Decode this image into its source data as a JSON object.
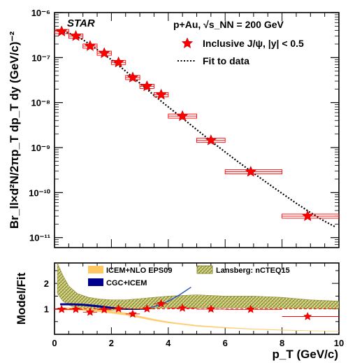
{
  "chart_data": [
    {
      "type": "scatter",
      "panel": "top",
      "experiment": "STAR",
      "system": "p+Au, √s_NN = 200 GeV",
      "ylabel": "Br_ll×d²N/2πp_T dp_T dy (GeV/c)⁻²",
      "xlim": [
        0,
        10
      ],
      "ylim": [
        6e-12,
        1e-06
      ],
      "yscale": "log",
      "y_ticks": [
        "10⁻⁶",
        "10⁻⁷",
        "10⁻⁸",
        "10⁻⁹",
        "10⁻¹⁰",
        "10⁻¹¹"
      ],
      "legend": {
        "placement": "top-right",
        "entries": [
          "Inclusive J/ψ, |y| < 0.5",
          "Fit to data"
        ]
      },
      "series": [
        {
          "name": "Inclusive J/ψ, |y| < 0.5",
          "marker": "star",
          "color": "#ff0000",
          "points": [
            {
              "x": 0.25,
              "y": 3.8e-07,
              "xlo": 0.0,
              "xhi": 0.5
            },
            {
              "x": 0.75,
              "y": 3e-07,
              "xlo": 0.5,
              "xhi": 1.0
            },
            {
              "x": 1.25,
              "y": 1.8e-07,
              "xlo": 1.0,
              "xhi": 1.5
            },
            {
              "x": 1.75,
              "y": 1.25e-07,
              "xlo": 1.5,
              "xhi": 2.0
            },
            {
              "x": 2.25,
              "y": 7.8e-08,
              "xlo": 2.0,
              "xhi": 2.5
            },
            {
              "x": 2.75,
              "y": 3.6e-08,
              "xlo": 2.5,
              "xhi": 3.0
            },
            {
              "x": 3.25,
              "y": 2.3e-08,
              "xlo": 3.0,
              "xhi": 3.5
            },
            {
              "x": 3.75,
              "y": 1.5e-08,
              "xlo": 3.5,
              "xhi": 4.0
            },
            {
              "x": 4.5,
              "y": 5e-09,
              "xlo": 4.0,
              "xhi": 5.0
            },
            {
              "x": 5.5,
              "y": 1.45e-09,
              "xlo": 5.0,
              "xhi": 6.0
            },
            {
              "x": 6.9,
              "y": 2.9e-10,
              "xlo": 6.0,
              "xhi": 8.0
            },
            {
              "x": 8.9,
              "y": 3e-11,
              "xlo": 8.0,
              "xhi": 10.0
            }
          ]
        },
        {
          "name": "Fit to data",
          "style": "dotted",
          "color": "#000000",
          "points": [
            {
              "x": 0.1,
              "y": 3.9e-07
            },
            {
              "x": 0.5,
              "y": 3.5e-07
            },
            {
              "x": 1.0,
              "y": 2.5e-07
            },
            {
              "x": 1.5,
              "y": 1.5e-07
            },
            {
              "x": 2.0,
              "y": 9e-08
            },
            {
              "x": 2.5,
              "y": 5e-08
            },
            {
              "x": 3.0,
              "y": 2.7e-08
            },
            {
              "x": 3.5,
              "y": 1.45e-08
            },
            {
              "x": 4.0,
              "y": 8e-09
            },
            {
              "x": 4.5,
              "y": 4.5e-09
            },
            {
              "x": 5.0,
              "y": 2.5e-09
            },
            {
              "x": 5.5,
              "y": 1.4e-09
            },
            {
              "x": 6.0,
              "y": 8e-10
            },
            {
              "x": 6.5,
              "y": 4.6e-10
            },
            {
              "x": 7.0,
              "y": 2.7e-10
            },
            {
              "x": 7.5,
              "y": 1.6e-10
            },
            {
              "x": 8.0,
              "y": 9.6e-11
            },
            {
              "x": 8.5,
              "y": 5.8e-11
            },
            {
              "x": 9.0,
              "y": 3.6e-11
            },
            {
              "x": 9.5,
              "y": 2.3e-11
            },
            {
              "x": 9.9,
              "y": 1.7e-11
            }
          ]
        }
      ]
    },
    {
      "type": "line",
      "panel": "bottom",
      "xlabel": "p_T (GeV/c)",
      "ylabel": "Model/Fit",
      "xlim": [
        0,
        10
      ],
      "ylim": [
        0,
        2.8
      ],
      "x_ticks": [
        "0",
        "2",
        "4",
        "6",
        "8",
        "10"
      ],
      "y_ticks": [
        "1",
        "2"
      ],
      "legend": {
        "placement": "top",
        "entries": [
          "ICEM+NLO EPS09",
          "CGC+ICEM",
          "Lansberg: nCTEQ15"
        ]
      },
      "series": [
        {
          "name": "Lansberg: nCTEQ15",
          "style": "hatched band",
          "color": "#a0a040",
          "x": [
            0.1,
            0.3,
            0.5,
            0.8,
            1.2,
            1.6,
            2.0,
            2.5,
            3.0,
            3.5,
            4.0,
            5.0,
            6.0,
            7.0,
            8.0,
            9.0,
            10.0
          ],
          "upper": [
            2.8,
            2.3,
            1.9,
            1.6,
            1.45,
            1.38,
            1.35,
            1.35,
            1.4,
            1.45,
            1.5,
            1.55,
            1.5,
            1.5,
            1.45,
            1.35,
            1.3
          ],
          "lower": [
            1.6,
            1.3,
            1.15,
            1.02,
            0.95,
            0.95,
            0.95,
            0.97,
            1.0,
            1.02,
            1.04,
            1.05,
            1.05,
            1.04,
            1.03,
            1.02,
            1.0
          ]
        },
        {
          "name": "ICEM+NLO EPS09",
          "style": "band",
          "color": "#ffc860",
          "x": [
            0.3,
            1.0,
            1.5,
            2.0,
            2.5,
            3.0,
            3.5,
            4.0,
            5.0,
            6.0,
            7.0,
            8.0,
            9.0,
            10.0
          ],
          "upper": [
            1.05,
            1.05,
            1.0,
            0.92,
            0.85,
            0.72,
            0.6,
            0.5,
            0.36,
            0.28,
            0.22,
            0.18,
            0.15,
            0.13
          ],
          "lower": [
            0.95,
            0.93,
            0.88,
            0.82,
            0.75,
            0.64,
            0.53,
            0.44,
            0.31,
            0.24,
            0.19,
            0.15,
            0.13,
            0.11
          ]
        },
        {
          "name": "CGC+ICEM",
          "style": "band",
          "color": "#000090",
          "x": [
            0.2,
            0.6,
            1.0,
            1.5,
            2.0,
            2.5,
            3.0,
            3.3
          ],
          "upper": [
            1.22,
            1.22,
            1.2,
            1.15,
            1.08,
            1.02,
            1.0,
            1.0
          ],
          "lower": [
            1.14,
            1.14,
            1.12,
            1.06,
            1.0,
            0.96,
            0.96,
            0.97
          ]
        },
        {
          "name": "CGC+ICEM (extension)",
          "style": "line",
          "color": "#2850c8",
          "x": [
            3.0,
            3.3,
            3.6,
            4.0,
            4.4,
            4.8
          ],
          "y": [
            0.98,
            1.02,
            1.12,
            1.3,
            1.55,
            1.85
          ]
        },
        {
          "name": "Ratio to fit",
          "style": "dashed",
          "color": "#ff0000",
          "x": [
            0,
            10
          ],
          "y": [
            1,
            1
          ]
        },
        {
          "name": "Data/Fit",
          "marker": "star",
          "color": "#ff0000",
          "points": [
            {
              "x": 0.25,
              "y": 0.98,
              "xlo": 0.0,
              "xhi": 0.5
            },
            {
              "x": 0.75,
              "y": 0.98,
              "xlo": 0.5,
              "xhi": 1.0
            },
            {
              "x": 1.25,
              "y": 0.87,
              "xlo": 1.0,
              "xhi": 1.5
            },
            {
              "x": 1.75,
              "y": 0.97,
              "xlo": 1.5,
              "xhi": 2.0
            },
            {
              "x": 2.25,
              "y": 1.0,
              "xlo": 2.0,
              "xhi": 2.5
            },
            {
              "x": 2.75,
              "y": 0.8,
              "xlo": 2.5,
              "xhi": 3.0
            },
            {
              "x": 3.25,
              "y": 1.0,
              "xlo": 3.0,
              "xhi": 3.5
            },
            {
              "x": 3.75,
              "y": 1.2,
              "xlo": 3.5,
              "xhi": 4.0
            },
            {
              "x": 4.5,
              "y": 1.03,
              "xlo": 4.0,
              "xhi": 5.0
            },
            {
              "x": 5.5,
              "y": 0.99,
              "xlo": 5.0,
              "xhi": 6.0
            },
            {
              "x": 6.9,
              "y": 0.98,
              "xlo": 6.0,
              "xhi": 8.0
            },
            {
              "x": 8.9,
              "y": 0.7,
              "xlo": 8.0,
              "xhi": 10.0
            }
          ]
        }
      ]
    }
  ],
  "colors": {
    "data": "#ff0000",
    "fit": "#000000",
    "icem_nlo": "#ffc860",
    "cgc_icem": "#000090",
    "lansberg": "#a0a040"
  }
}
